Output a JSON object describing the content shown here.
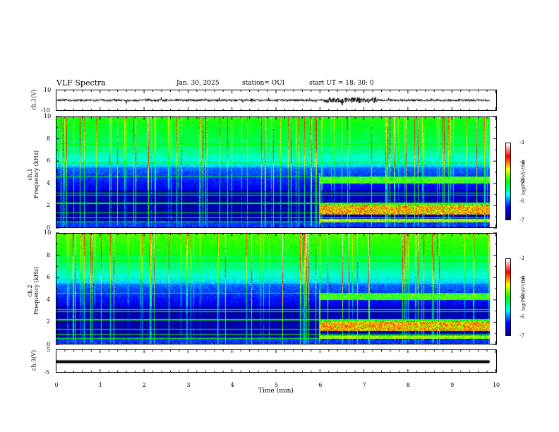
{
  "header": {
    "title": "VLF Spectra",
    "date": "Jan. 30, 2025",
    "station": "station= OUI",
    "start": "start  UT  =  18: 30: 0"
  },
  "chart_data": [
    {
      "type": "line",
      "panel": "ch1-waveform",
      "ylabel": "ch.1(V)",
      "ylim": [
        -10,
        10
      ],
      "yticks": [
        "10",
        "-10"
      ]
    },
    {
      "type": "heatmap",
      "panel": "ch1-spectrogram",
      "ylabel": "ch.1\nFrequency (kHz)",
      "ylabel_top": "ch.1",
      "ylabel_bottom": "Frequency (kHz)",
      "ylim": [
        0,
        10
      ],
      "yticks": [
        "10",
        "8",
        "6",
        "4",
        "2",
        "0"
      ],
      "colorbar": {
        "title": "log(PSD)(V²/Hz)",
        "ticks": [
          "-3",
          "-4",
          "-5",
          "-6",
          "-7"
        ],
        "range": [
          -7,
          -3
        ],
        "colors": [
          "#000080",
          "#0000ff",
          "#00ffff",
          "#00ff00",
          "#ffff00",
          "#ff0000",
          "#ffffff"
        ]
      }
    },
    {
      "type": "heatmap",
      "panel": "ch2-spectrogram",
      "ylabel": "ch.2\nFrequency (kHz)",
      "ylabel_top": "ch.2",
      "ylabel_bottom": "Frequency (kHz)",
      "ylim": [
        0,
        10
      ],
      "yticks": [
        "10",
        "8",
        "6",
        "4",
        "2",
        "0"
      ],
      "colorbar": {
        "title": "log(PSD)(V²/Hz)",
        "ticks": [
          "-3",
          "-4",
          "-5",
          "-6",
          "-7"
        ],
        "range": [
          -7,
          -3
        ]
      }
    },
    {
      "type": "line",
      "panel": "ch3-waveform",
      "ylabel": "ch.3(V)",
      "ylim": [
        -5,
        5
      ],
      "yticks": [
        "5",
        "-5"
      ],
      "constant_value": -0.3
    }
  ],
  "xaxis": {
    "title": "Time (min)",
    "xlim": [
      0,
      10
    ],
    "ticks": [
      "0",
      "1",
      "2",
      "3",
      "4",
      "5",
      "6",
      "7",
      "8",
      "9",
      "10"
    ]
  },
  "events": {
    "transition_min": 5.98,
    "data_end_min": 9.85
  }
}
